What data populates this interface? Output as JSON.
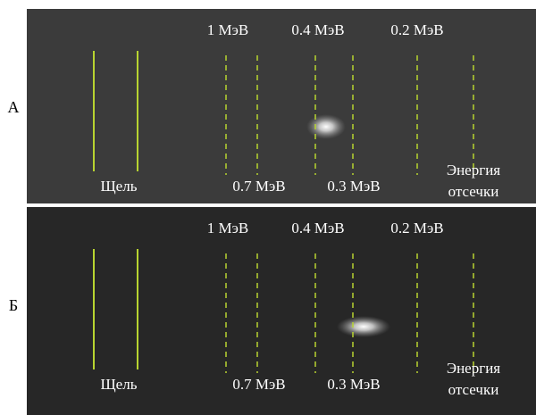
{
  "panels": [
    {
      "label": "А",
      "top_labels": [
        "1 МэВ",
        "0.4 МэВ",
        "0.2 МэВ"
      ],
      "bottom_labels": [
        "Щель",
        "0.7 МэВ",
        "0.3 МэВ"
      ],
      "cutoff": [
        "Энергия",
        "отсечки"
      ]
    },
    {
      "label": "Б",
      "top_labels": [
        "1 МэВ",
        "0.4 МэВ",
        "0.2 МэВ"
      ],
      "bottom_labels": [
        "Щель",
        "0.7 МэВ",
        "0.3 МэВ"
      ],
      "cutoff": [
        "Энергия",
        "отсечки"
      ]
    }
  ]
}
